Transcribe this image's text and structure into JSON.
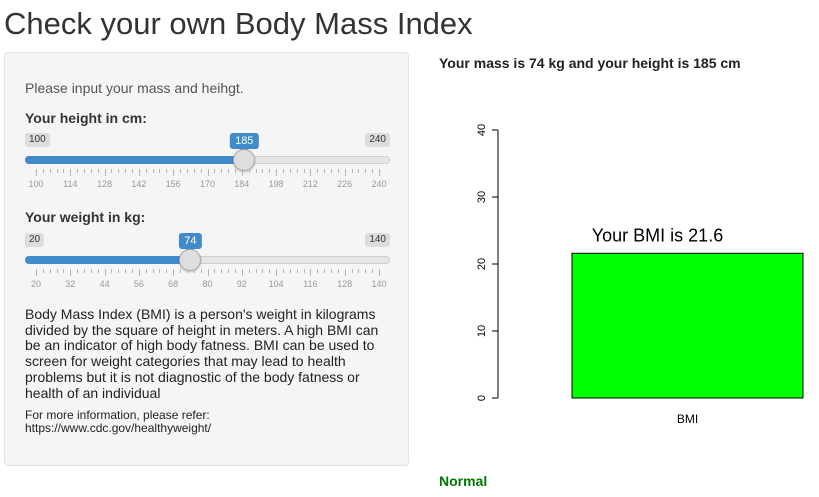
{
  "page": {
    "title": "Check your own Body Mass Index"
  },
  "sidebar": {
    "intro": "Please input your mass and heihgt.",
    "height": {
      "label": "Your height in cm:",
      "min": 100,
      "max": 240,
      "value": 185,
      "grid": [
        "100",
        "114",
        "128",
        "142",
        "156",
        "170",
        "184",
        "198",
        "212",
        "226",
        "240"
      ]
    },
    "weight": {
      "label": "Your weight in kg:",
      "min": 20,
      "max": 140,
      "value": 74,
      "grid": [
        "20",
        "32",
        "44",
        "56",
        "68",
        "80",
        "92",
        "104",
        "116",
        "128",
        "140"
      ]
    },
    "description": "Body Mass Index (BMI) is a person's weight in kilograms divided by the square of height in meters. A high BMI can be an indicator of high body fatness. BMI can be used to screen for weight categories that may lead to health problems but it is not diagnostic of the body fatness or health of an individual",
    "info_line1": "For more information, please refer:",
    "info_link": "https://www.cdc.gov/healthyweight/"
  },
  "main": {
    "summary": "Your mass is 74 kg and your height is 185 cm",
    "category": "Normal",
    "category_color": "#007700"
  },
  "chart_data": {
    "type": "bar",
    "categories": [
      "BMI"
    ],
    "values": [
      21.6
    ],
    "annotation": "Your BMI is 21.6",
    "bar_color": "#00ff00",
    "ylim": [
      0,
      40
    ],
    "yticks": [
      "0",
      "10",
      "20",
      "30",
      "40"
    ],
    "title": "",
    "xlabel": "",
    "ylabel": ""
  }
}
